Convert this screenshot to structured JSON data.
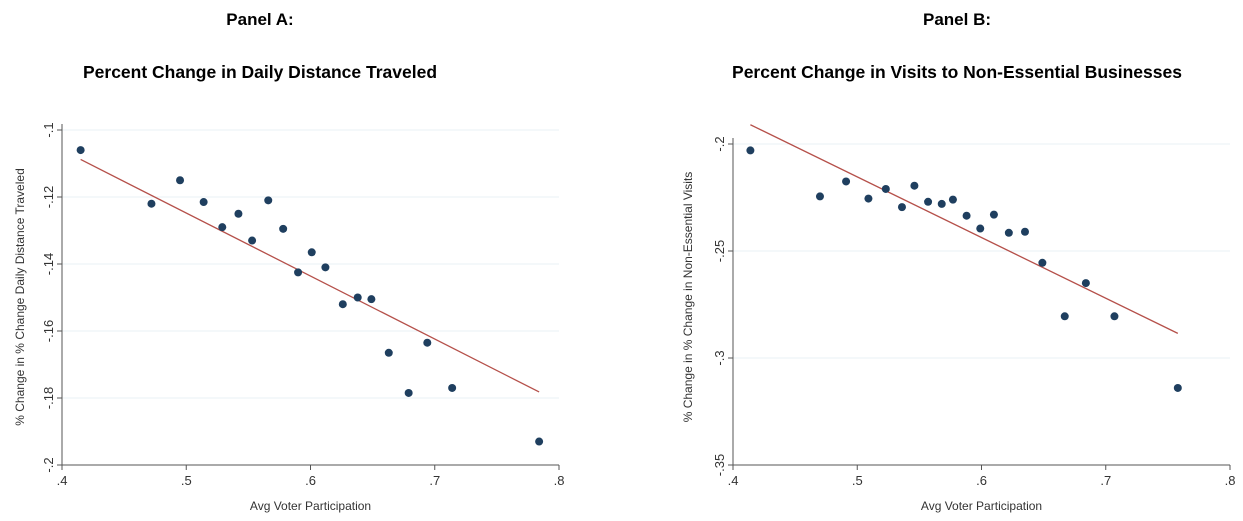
{
  "panels": [
    {
      "label": "Panel A:",
      "title": "Percent Change in Daily Distance Traveled"
    },
    {
      "label": "Panel B:",
      "title": "Percent Change in Visits to Non-Essential Businesses"
    }
  ],
  "colors": {
    "dot": "#1f3f5f",
    "fit_line": "#b5504a",
    "grid": "#eaf0f4",
    "axis": "#555555",
    "background": "#ffffff"
  },
  "chart_data": [
    {
      "type": "scatter",
      "title": "Percent Change in Daily Distance Traveled",
      "xlabel": "Avg Voter Participation",
      "ylabel": "% Change in % Change Daily Distance Traveled",
      "xlim": [
        0.4,
        0.8
      ],
      "ylim": [
        -0.2,
        -0.1
      ],
      "x_ticks": [
        0.4,
        0.5,
        0.6,
        0.7,
        0.8
      ],
      "x_tick_labels": [
        ".4",
        ".5",
        ".6",
        ".7",
        ".8"
      ],
      "y_ticks": [
        -0.2,
        -0.18,
        -0.16,
        -0.14,
        -0.12,
        -0.1
      ],
      "y_tick_labels": [
        "-.2",
        "-.18",
        "-.16",
        "-.14",
        "-.12",
        "-.1"
      ],
      "grid": "horizontal",
      "points": [
        {
          "x": 0.415,
          "y": -0.106
        },
        {
          "x": 0.472,
          "y": -0.122
        },
        {
          "x": 0.495,
          "y": -0.115
        },
        {
          "x": 0.514,
          "y": -0.1215
        },
        {
          "x": 0.529,
          "y": -0.129
        },
        {
          "x": 0.542,
          "y": -0.125
        },
        {
          "x": 0.553,
          "y": -0.133
        },
        {
          "x": 0.566,
          "y": -0.121
        },
        {
          "x": 0.578,
          "y": -0.1295
        },
        {
          "x": 0.59,
          "y": -0.1425
        },
        {
          "x": 0.601,
          "y": -0.1365
        },
        {
          "x": 0.612,
          "y": -0.141
        },
        {
          "x": 0.626,
          "y": -0.152
        },
        {
          "x": 0.638,
          "y": -0.15
        },
        {
          "x": 0.649,
          "y": -0.1505
        },
        {
          "x": 0.663,
          "y": -0.1665
        },
        {
          "x": 0.679,
          "y": -0.1785
        },
        {
          "x": 0.694,
          "y": -0.1635
        },
        {
          "x": 0.714,
          "y": -0.177
        },
        {
          "x": 0.784,
          "y": -0.193
        }
      ],
      "fit_line": {
        "x": [
          0.415,
          0.784
        ],
        "y": [
          -0.1088,
          -0.1782
        ]
      }
    },
    {
      "type": "scatter",
      "title": "Percent Change in Visits to Non-Essential Businesses",
      "xlabel": "Avg Voter Participation",
      "ylabel": "% Change in % Change in Non-Essential Visits",
      "xlim": [
        0.4,
        0.8
      ],
      "ylim": [
        -0.35,
        -0.2
      ],
      "x_ticks": [
        0.4,
        0.5,
        0.6,
        0.7,
        0.8
      ],
      "x_tick_labels": [
        ".4",
        ".5",
        ".6",
        ".7",
        ".8"
      ],
      "y_ticks": [
        -0.35,
        -0.3,
        -0.25,
        -0.2
      ],
      "y_tick_labels": [
        "-.35",
        "-.3",
        "-.25",
        "-.2"
      ],
      "grid": "horizontal",
      "points": [
        {
          "x": 0.414,
          "y": -0.203
        },
        {
          "x": 0.47,
          "y": -0.2245
        },
        {
          "x": 0.491,
          "y": -0.2175
        },
        {
          "x": 0.509,
          "y": -0.2255
        },
        {
          "x": 0.523,
          "y": -0.221
        },
        {
          "x": 0.536,
          "y": -0.2295
        },
        {
          "x": 0.546,
          "y": -0.2195
        },
        {
          "x": 0.557,
          "y": -0.227
        },
        {
          "x": 0.568,
          "y": -0.228
        },
        {
          "x": 0.577,
          "y": -0.226
        },
        {
          "x": 0.588,
          "y": -0.2335
        },
        {
          "x": 0.599,
          "y": -0.2395
        },
        {
          "x": 0.61,
          "y": -0.233
        },
        {
          "x": 0.622,
          "y": -0.2415
        },
        {
          "x": 0.635,
          "y": -0.241
        },
        {
          "x": 0.649,
          "y": -0.2555
        },
        {
          "x": 0.667,
          "y": -0.2805
        },
        {
          "x": 0.684,
          "y": -0.265
        },
        {
          "x": 0.707,
          "y": -0.2805
        },
        {
          "x": 0.758,
          "y": -0.314
        }
      ],
      "fit_line": {
        "x": [
          0.414,
          0.758
        ],
        "y": [
          -0.191,
          -0.2885
        ]
      }
    }
  ]
}
